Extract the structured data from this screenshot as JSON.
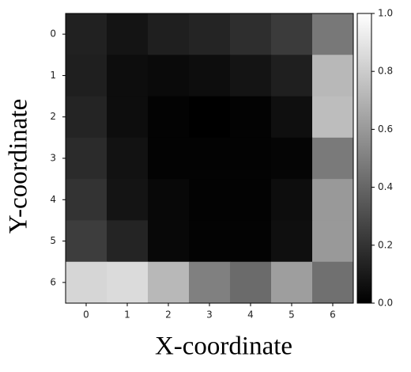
{
  "chart_data": {
    "type": "heatmap",
    "xlabel": "X-coordinate",
    "ylabel": "Y-coordinate",
    "x": [
      "0",
      "1",
      "2",
      "3",
      "4",
      "5",
      "6"
    ],
    "y": [
      "0",
      "1",
      "2",
      "3",
      "4",
      "5",
      "6"
    ],
    "values": [
      [
        0.13,
        0.08,
        0.12,
        0.14,
        0.18,
        0.23,
        0.47
      ],
      [
        0.12,
        0.05,
        0.04,
        0.05,
        0.08,
        0.12,
        0.72
      ],
      [
        0.14,
        0.05,
        0.01,
        0.0,
        0.01,
        0.06,
        0.74
      ],
      [
        0.17,
        0.07,
        0.01,
        0.01,
        0.01,
        0.02,
        0.48
      ],
      [
        0.2,
        0.08,
        0.03,
        0.01,
        0.01,
        0.05,
        0.6
      ],
      [
        0.24,
        0.14,
        0.03,
        0.01,
        0.01,
        0.06,
        0.6
      ],
      [
        0.84,
        0.86,
        0.72,
        0.5,
        0.42,
        0.62,
        0.44
      ]
    ],
    "colormap": "gray",
    "zlim": [
      0,
      1
    ],
    "zticks": [
      {
        "value": 0,
        "label": "0.0"
      },
      {
        "value": 0.2,
        "label": "0.2"
      },
      {
        "value": 0.4,
        "label": "0.4"
      },
      {
        "value": 0.6,
        "label": "0.6"
      },
      {
        "value": 0.8,
        "label": "0.8"
      },
      {
        "value": 1,
        "label": "1.0"
      }
    ]
  }
}
